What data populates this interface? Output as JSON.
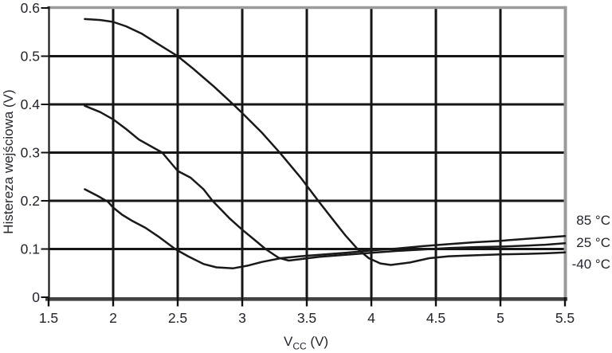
{
  "figure": {
    "y_axis_title": "Histereza wejściowa (V)",
    "x_axis_title_main": "V",
    "x_axis_title_sub": "CC",
    "x_axis_title_unit": " (V)"
  },
  "legend": {
    "items": [
      {
        "label": "85 °C"
      },
      {
        "label": "25 °C"
      },
      {
        "label": "-40 °C"
      }
    ]
  },
  "colors": {
    "curve": "#191919",
    "grid": "#161616",
    "axis_left": "#1a1a1a",
    "axis_bottom": "#414141",
    "border_gray": "#9a9a9a",
    "tick": "#111111",
    "text": "#23242e"
  },
  "chart_data": {
    "type": "line",
    "title": "",
    "xlabel": "VCC (V)",
    "ylabel": "Histereza wejściowa (V)",
    "xlim": [
      1.5,
      5.5
    ],
    "ylim": [
      0,
      0.6
    ],
    "x_ticks": [
      1.5,
      2,
      2.5,
      3,
      3.5,
      4,
      4.5,
      5,
      5.5
    ],
    "x_tick_labels": [
      "1.5",
      "2",
      "2.5",
      "3",
      "3.5",
      "4",
      "4.5",
      "5",
      "5.5"
    ],
    "y_ticks": [
      0,
      0.1,
      0.2,
      0.3,
      0.4,
      0.5,
      0.6
    ],
    "y_tick_labels": [
      "0",
      "0.1",
      "0.2",
      "0.3",
      "0.4",
      "0.5",
      "0.6"
    ],
    "grid": true,
    "legend_position": "right-outside",
    "series": [
      {
        "name": "85 °C",
        "points": [
          [
            1.78,
            0.224
          ],
          [
            1.88,
            0.21
          ],
          [
            1.96,
            0.198
          ],
          [
            2.0,
            0.186
          ],
          [
            2.07,
            0.171
          ],
          [
            2.15,
            0.158
          ],
          [
            2.25,
            0.144
          ],
          [
            2.35,
            0.126
          ],
          [
            2.48,
            0.1
          ],
          [
            2.58,
            0.085
          ],
          [
            2.7,
            0.069
          ],
          [
            2.8,
            0.062
          ],
          [
            2.93,
            0.06
          ],
          [
            3.05,
            0.066
          ],
          [
            3.15,
            0.073
          ],
          [
            3.3,
            0.081
          ],
          [
            3.45,
            0.085
          ],
          [
            3.6,
            0.088
          ],
          [
            3.8,
            0.092
          ],
          [
            4.0,
            0.097
          ],
          [
            4.2,
            0.101
          ],
          [
            4.4,
            0.106
          ],
          [
            4.6,
            0.11
          ],
          [
            4.8,
            0.114
          ],
          [
            5.0,
            0.117
          ],
          [
            5.2,
            0.121
          ],
          [
            5.35,
            0.124
          ],
          [
            5.5,
            0.127
          ]
        ]
      },
      {
        "name": "25 °C",
        "points": [
          [
            1.78,
            0.397
          ],
          [
            1.9,
            0.384
          ],
          [
            2.0,
            0.369
          ],
          [
            2.1,
            0.349
          ],
          [
            2.2,
            0.327
          ],
          [
            2.38,
            0.3
          ],
          [
            2.5,
            0.262
          ],
          [
            2.6,
            0.248
          ],
          [
            2.7,
            0.224
          ],
          [
            2.77,
            0.2
          ],
          [
            2.9,
            0.164
          ],
          [
            3.0,
            0.14
          ],
          [
            3.1,
            0.118
          ],
          [
            3.18,
            0.1
          ],
          [
            3.28,
            0.082
          ],
          [
            3.36,
            0.076
          ],
          [
            3.45,
            0.079
          ],
          [
            3.6,
            0.084
          ],
          [
            3.8,
            0.088
          ],
          [
            4.0,
            0.092
          ],
          [
            4.2,
            0.096
          ],
          [
            4.4,
            0.099
          ],
          [
            4.6,
            0.102
          ],
          [
            4.8,
            0.104
          ],
          [
            5.0,
            0.105
          ],
          [
            5.2,
            0.107
          ],
          [
            5.35,
            0.109
          ],
          [
            5.5,
            0.112
          ]
        ]
      },
      {
        "name": "-40 °C",
        "points": [
          [
            1.78,
            0.577
          ],
          [
            1.9,
            0.575
          ],
          [
            2.0,
            0.571
          ],
          [
            2.1,
            0.562
          ],
          [
            2.22,
            0.547
          ],
          [
            2.35,
            0.525
          ],
          [
            2.5,
            0.5
          ],
          [
            2.62,
            0.474
          ],
          [
            2.78,
            0.437
          ],
          [
            2.93,
            0.4
          ],
          [
            3.0,
            0.382
          ],
          [
            3.15,
            0.342
          ],
          [
            3.3,
            0.297
          ],
          [
            3.45,
            0.249
          ],
          [
            3.6,
            0.196
          ],
          [
            3.72,
            0.155
          ],
          [
            3.8,
            0.128
          ],
          [
            3.89,
            0.101
          ],
          [
            3.98,
            0.081
          ],
          [
            4.07,
            0.07
          ],
          [
            4.15,
            0.067
          ],
          [
            4.3,
            0.072
          ],
          [
            4.45,
            0.081
          ],
          [
            4.6,
            0.085
          ],
          [
            4.8,
            0.087
          ],
          [
            5.0,
            0.089
          ],
          [
            5.2,
            0.09
          ],
          [
            5.35,
            0.091
          ],
          [
            5.5,
            0.093
          ]
        ]
      }
    ]
  }
}
